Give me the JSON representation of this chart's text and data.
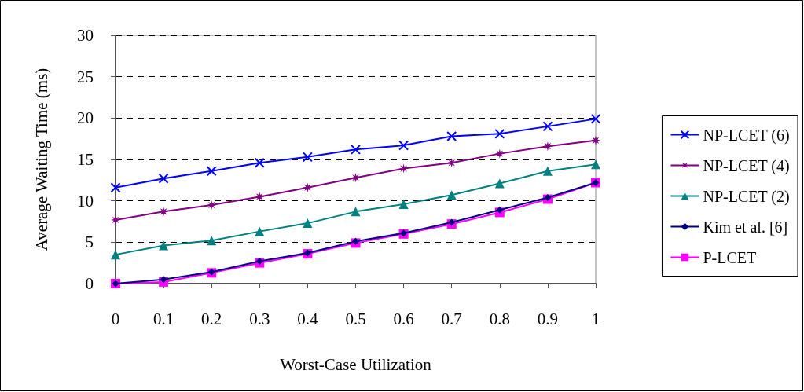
{
  "chart_data": {
    "type": "line",
    "xlabel": "Worst-Case Utilization",
    "ylabel": "Average Waiting Time (ms)",
    "categories": [
      "0",
      "0.1",
      "0.2",
      "0.3",
      "0.4",
      "0.5",
      "0.6",
      "0.7",
      "0.8",
      "0.9",
      "1"
    ],
    "ylim": [
      0,
      30
    ],
    "yticks": [
      0,
      5,
      10,
      15,
      20,
      25,
      30
    ],
    "grid": "y",
    "legend": "right",
    "series": [
      {
        "name": "NP-LCET (6)",
        "color": "#0000ff",
        "marker": "cross",
        "values": [
          11.6,
          12.7,
          13.6,
          14.6,
          15.3,
          16.2,
          16.7,
          17.8,
          18.1,
          19.0,
          19.9
        ]
      },
      {
        "name": "NP-LCET (4)",
        "color": "#800080",
        "marker": "star",
        "values": [
          7.7,
          8.7,
          9.5,
          10.5,
          11.6,
          12.8,
          13.9,
          14.6,
          15.7,
          16.6,
          17.3
        ]
      },
      {
        "name": "NP-LCET (2)",
        "color": "#008080",
        "marker": "triangle",
        "values": [
          3.5,
          4.6,
          5.2,
          6.3,
          7.3,
          8.7,
          9.6,
          10.7,
          12.1,
          13.6,
          14.4
        ]
      },
      {
        "name": "Kim et al. [6]",
        "color": "#000080",
        "marker": "diamond",
        "values": [
          0,
          0.5,
          1.4,
          2.7,
          3.7,
          5.1,
          6.1,
          7.4,
          8.9,
          10.4,
          12.2
        ]
      },
      {
        "name": "P-LCET",
        "color": "#ff00ff",
        "marker": "square",
        "values": [
          0,
          0.2,
          1.3,
          2.5,
          3.6,
          4.9,
          6.0,
          7.2,
          8.6,
          10.2,
          12.2
        ]
      }
    ]
  }
}
